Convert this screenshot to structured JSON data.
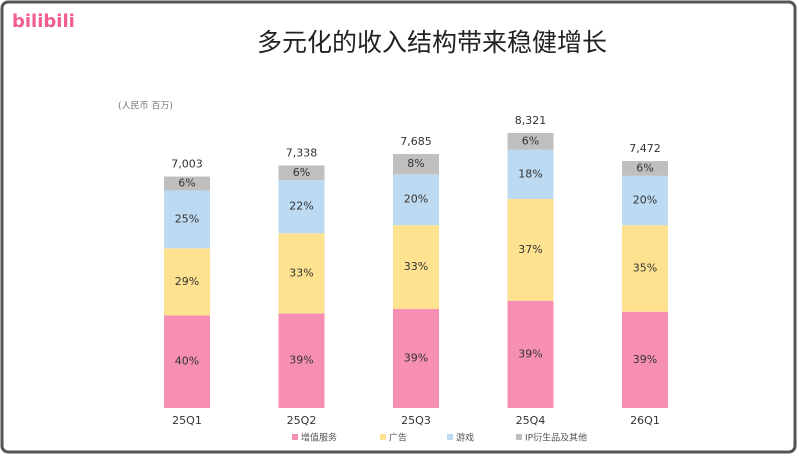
{
  "logo": "bilibili",
  "chart_data": {
    "type": "stacked_bar",
    "title": "多元化的收入结构带来稳健增长",
    "unit": "(人民币 百万)",
    "categories": [
      "25Q1",
      "25Q2",
      "25Q3",
      "25Q4",
      "26Q1"
    ],
    "totals": {
      "values": [
        7003,
        7338,
        7685,
        8321,
        7472
      ],
      "value_labels": [
        "7,003",
        "7,338",
        "7,685",
        "8,321",
        "7,472"
      ]
    },
    "series": [
      {
        "name": "增值服务",
        "color": "#f78fb5",
        "values": [
          40,
          39,
          39,
          39,
          39
        ],
        "value_labels": [
          "40%",
          "39%",
          "39%",
          "39%",
          "39%"
        ]
      },
      {
        "name": "广告",
        "color": "#fee28f",
        "values": [
          29,
          33,
          33,
          37,
          35
        ],
        "value_labels": [
          "29%",
          "33%",
          "33%",
          "37%",
          "35%"
        ]
      },
      {
        "name": "游戏",
        "color": "#bcdaf2",
        "values": [
          25,
          22,
          20,
          18,
          20
        ],
        "value_labels": [
          "25%",
          "22%",
          "20%",
          "18%",
          "20%"
        ]
      },
      {
        "name": "IP衍生品及其他",
        "color": "#bfbfbf",
        "values": [
          6,
          6,
          8,
          6,
          6
        ],
        "value_labels": [
          "6%",
          "6%",
          "8%",
          "6%",
          "6%"
        ]
      }
    ]
  }
}
